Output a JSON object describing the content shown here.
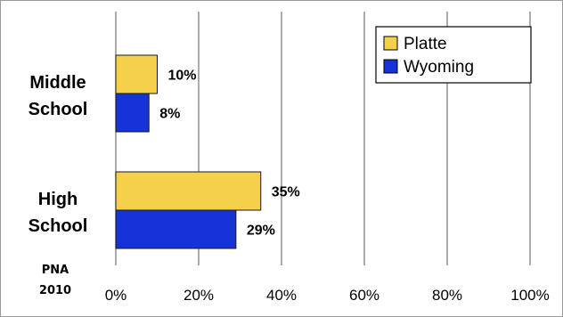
{
  "chart_data": {
    "type": "bar",
    "orientation": "horizontal",
    "categories": [
      "Middle School",
      "High School"
    ],
    "category_lines": [
      [
        "Middle",
        "School"
      ],
      [
        "High",
        "School"
      ]
    ],
    "series": [
      {
        "name": "Platte",
        "values": [
          10,
          35
        ],
        "labels": [
          "10%",
          "35%"
        ],
        "color": "#f5d04a"
      },
      {
        "name": "Wyoming",
        "values": [
          8,
          29
        ],
        "labels": [
          "8%",
          "29%"
        ],
        "color": "#1533d6"
      }
    ],
    "x_ticks": [
      "0%",
      "20%",
      "40%",
      "60%",
      "80%",
      "100%"
    ],
    "xlim": [
      0,
      100
    ],
    "grid": true,
    "legend_position": "top-right",
    "note_lines": [
      "PNA",
      "2010"
    ]
  },
  "colors": {
    "gridline": "#808080",
    "bar_stroke": "#1a1a1a",
    "frame": "#9a9a9a"
  }
}
